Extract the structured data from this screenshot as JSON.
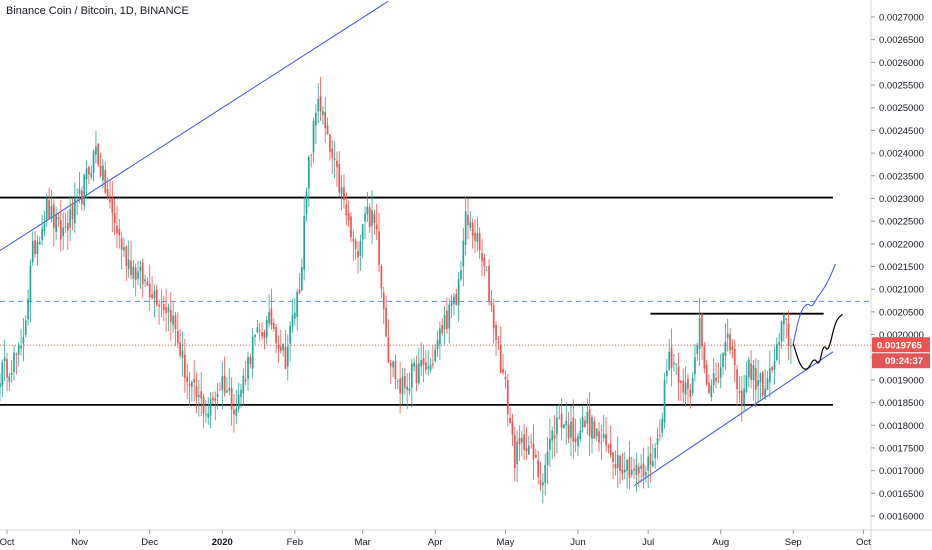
{
  "chart_data": {
    "type": "candlestick",
    "title": "Binance Coin / Bitcoin, 1D, BINANCE",
    "y_ticks": [
      "0.0027000",
      "0.0026500",
      "0.0026000",
      "0.0025500",
      "0.0025000",
      "0.0024500",
      "0.0024000",
      "0.0023500",
      "0.0023000",
      "0.0022500",
      "0.0022000",
      "0.0021500",
      "0.0021000",
      "0.0020500",
      "0.0020000",
      "0.0019500",
      "0.0019000",
      "0.0018500",
      "0.0018000",
      "0.0017500",
      "0.0017000",
      "0.0016500",
      "0.0016000"
    ],
    "ylim": [
      0.00158,
      0.00274
    ],
    "x_ticks": [
      {
        "label": "Oct",
        "bold": false,
        "day": 0
      },
      {
        "label": "Nov",
        "bold": false,
        "day": 31
      },
      {
        "label": "Dec",
        "bold": false,
        "day": 61
      },
      {
        "label": "2020",
        "bold": true,
        "day": 92
      },
      {
        "label": "Feb",
        "bold": false,
        "day": 123
      },
      {
        "label": "Mar",
        "bold": false,
        "day": 152
      },
      {
        "label": "Apr",
        "bold": false,
        "day": 183
      },
      {
        "label": "May",
        "bold": false,
        "day": 213
      },
      {
        "label": "Jun",
        "bold": false,
        "day": 244
      },
      {
        "label": "Jul",
        "bold": false,
        "day": 274
      },
      {
        "label": "Aug",
        "bold": false,
        "day": 305
      },
      {
        "label": "Sep",
        "bold": false,
        "day": 336
      },
      {
        "label": "Oct",
        "bold": false,
        "day": 366
      }
    ],
    "x_start": "2019-10-01",
    "last_price": "0.0019765",
    "countdown": "09:24:37",
    "up_color": "#26a69a",
    "down_color": "#ef5350",
    "key_points": [
      {
        "day": -3,
        "close": 0.001915
      },
      {
        "day": 6,
        "close": 0.00196
      },
      {
        "day": 11,
        "close": 0.00218
      },
      {
        "day": 17,
        "close": 0.00228
      },
      {
        "day": 23,
        "close": 0.00222
      },
      {
        "day": 30,
        "close": 0.00228
      },
      {
        "day": 38,
        "close": 0.00241
      },
      {
        "day": 44,
        "close": 0.00228
      },
      {
        "day": 50,
        "close": 0.00218
      },
      {
        "day": 56,
        "close": 0.00213
      },
      {
        "day": 62,
        "close": 0.0021
      },
      {
        "day": 70,
        "close": 0.00205
      },
      {
        "day": 78,
        "close": 0.00188
      },
      {
        "day": 86,
        "close": 0.00183
      },
      {
        "day": 92,
        "close": 0.0019
      },
      {
        "day": 98,
        "close": 0.00184
      },
      {
        "day": 105,
        "close": 0.00198
      },
      {
        "day": 113,
        "close": 0.00203
      },
      {
        "day": 119,
        "close": 0.00195
      },
      {
        "day": 125,
        "close": 0.00211
      },
      {
        "day": 129,
        "close": 0.00237
      },
      {
        "day": 133,
        "close": 0.00253
      },
      {
        "day": 137,
        "close": 0.00242
      },
      {
        "day": 143,
        "close": 0.00231
      },
      {
        "day": 149,
        "close": 0.00217
      },
      {
        "day": 153,
        "close": 0.00228
      },
      {
        "day": 158,
        "close": 0.00223
      },
      {
        "day": 163,
        "close": 0.00196
      },
      {
        "day": 168,
        "close": 0.00188
      },
      {
        "day": 175,
        "close": 0.00192
      },
      {
        "day": 181,
        "close": 0.00193
      },
      {
        "day": 187,
        "close": 0.00203
      },
      {
        "day": 192,
        "close": 0.00207
      },
      {
        "day": 196,
        "close": 0.00225
      },
      {
        "day": 200,
        "close": 0.00222
      },
      {
        "day": 205,
        "close": 0.00212
      },
      {
        "day": 209,
        "close": 0.002
      },
      {
        "day": 213,
        "close": 0.00188
      },
      {
        "day": 217,
        "close": 0.00173
      },
      {
        "day": 222,
        "close": 0.00177
      },
      {
        "day": 228,
        "close": 0.00168
      },
      {
        "day": 232,
        "close": 0.00176
      },
      {
        "day": 236,
        "close": 0.00182
      },
      {
        "day": 242,
        "close": 0.00178
      },
      {
        "day": 248,
        "close": 0.00181
      },
      {
        "day": 254,
        "close": 0.00176
      },
      {
        "day": 260,
        "close": 0.00173
      },
      {
        "day": 266,
        "close": 0.00171
      },
      {
        "day": 272,
        "close": 0.00169
      },
      {
        "day": 278,
        "close": 0.00176
      },
      {
        "day": 283,
        "close": 0.00196
      },
      {
        "day": 288,
        "close": 0.00191
      },
      {
        "day": 292,
        "close": 0.00185
      },
      {
        "day": 296,
        "close": 0.00204
      },
      {
        "day": 300,
        "close": 0.00186
      },
      {
        "day": 305,
        "close": 0.00193
      },
      {
        "day": 309,
        "close": 0.00199
      },
      {
        "day": 313,
        "close": 0.00185
      },
      {
        "day": 317,
        "close": 0.00193
      },
      {
        "day": 321,
        "close": 0.00189
      },
      {
        "day": 325,
        "close": 0.00189
      },
      {
        "day": 330,
        "close": 0.00198
      },
      {
        "day": 332,
        "close": 0.00203
      },
      {
        "day": 335,
        "close": 0.0019765
      }
    ],
    "drawings": {
      "upper_trendline": {
        "p1": {
          "day": -3,
          "price": 0.002185
        },
        "p2": {
          "day": 163,
          "price": 0.002735
        },
        "color": "#3f51d8"
      },
      "lower_trendline": {
        "p1": {
          "day": 268,
          "price": 0.001667
        },
        "p2": {
          "day": 353,
          "price": 0.001962
        },
        "color": "#3f51d8"
      },
      "resistance_top": {
        "price": 0.002302,
        "from": -3,
        "to": 353,
        "color": "#000000"
      },
      "support": {
        "price": 0.001845,
        "from": -3,
        "to": 353,
        "color": "#000000"
      },
      "resistance_mid": {
        "price": 0.002046,
        "from": 275,
        "to": 349,
        "color": "#000000"
      },
      "dashed_level": {
        "price": 0.002073,
        "color": "#5b8fd6"
      },
      "price_line": {
        "price": 0.0019765,
        "color": "#ef5350"
      },
      "bull_projection": [
        {
          "day": 336,
          "price": 0.00198
        },
        {
          "day": 339,
          "price": 0.00205
        },
        {
          "day": 342,
          "price": 0.00207
        },
        {
          "day": 344,
          "price": 0.00206
        },
        {
          "day": 346,
          "price": 0.00208
        },
        {
          "day": 349,
          "price": 0.0021
        },
        {
          "day": 352,
          "price": 0.00213
        },
        {
          "day": 354,
          "price": 0.002155
        }
      ],
      "bull_projection_color": "#3f51d8",
      "bear_projection": [
        {
          "day": 336,
          "price": 0.00198
        },
        {
          "day": 339,
          "price": 0.00193
        },
        {
          "day": 342,
          "price": 0.00192
        },
        {
          "day": 345,
          "price": 0.00195
        },
        {
          "day": 347,
          "price": 0.00193
        },
        {
          "day": 349,
          "price": 0.00198
        },
        {
          "day": 351,
          "price": 0.00196
        },
        {
          "day": 354,
          "price": 0.00203
        },
        {
          "day": 357,
          "price": 0.002045
        }
      ],
      "bear_projection_color": "#000000"
    }
  }
}
